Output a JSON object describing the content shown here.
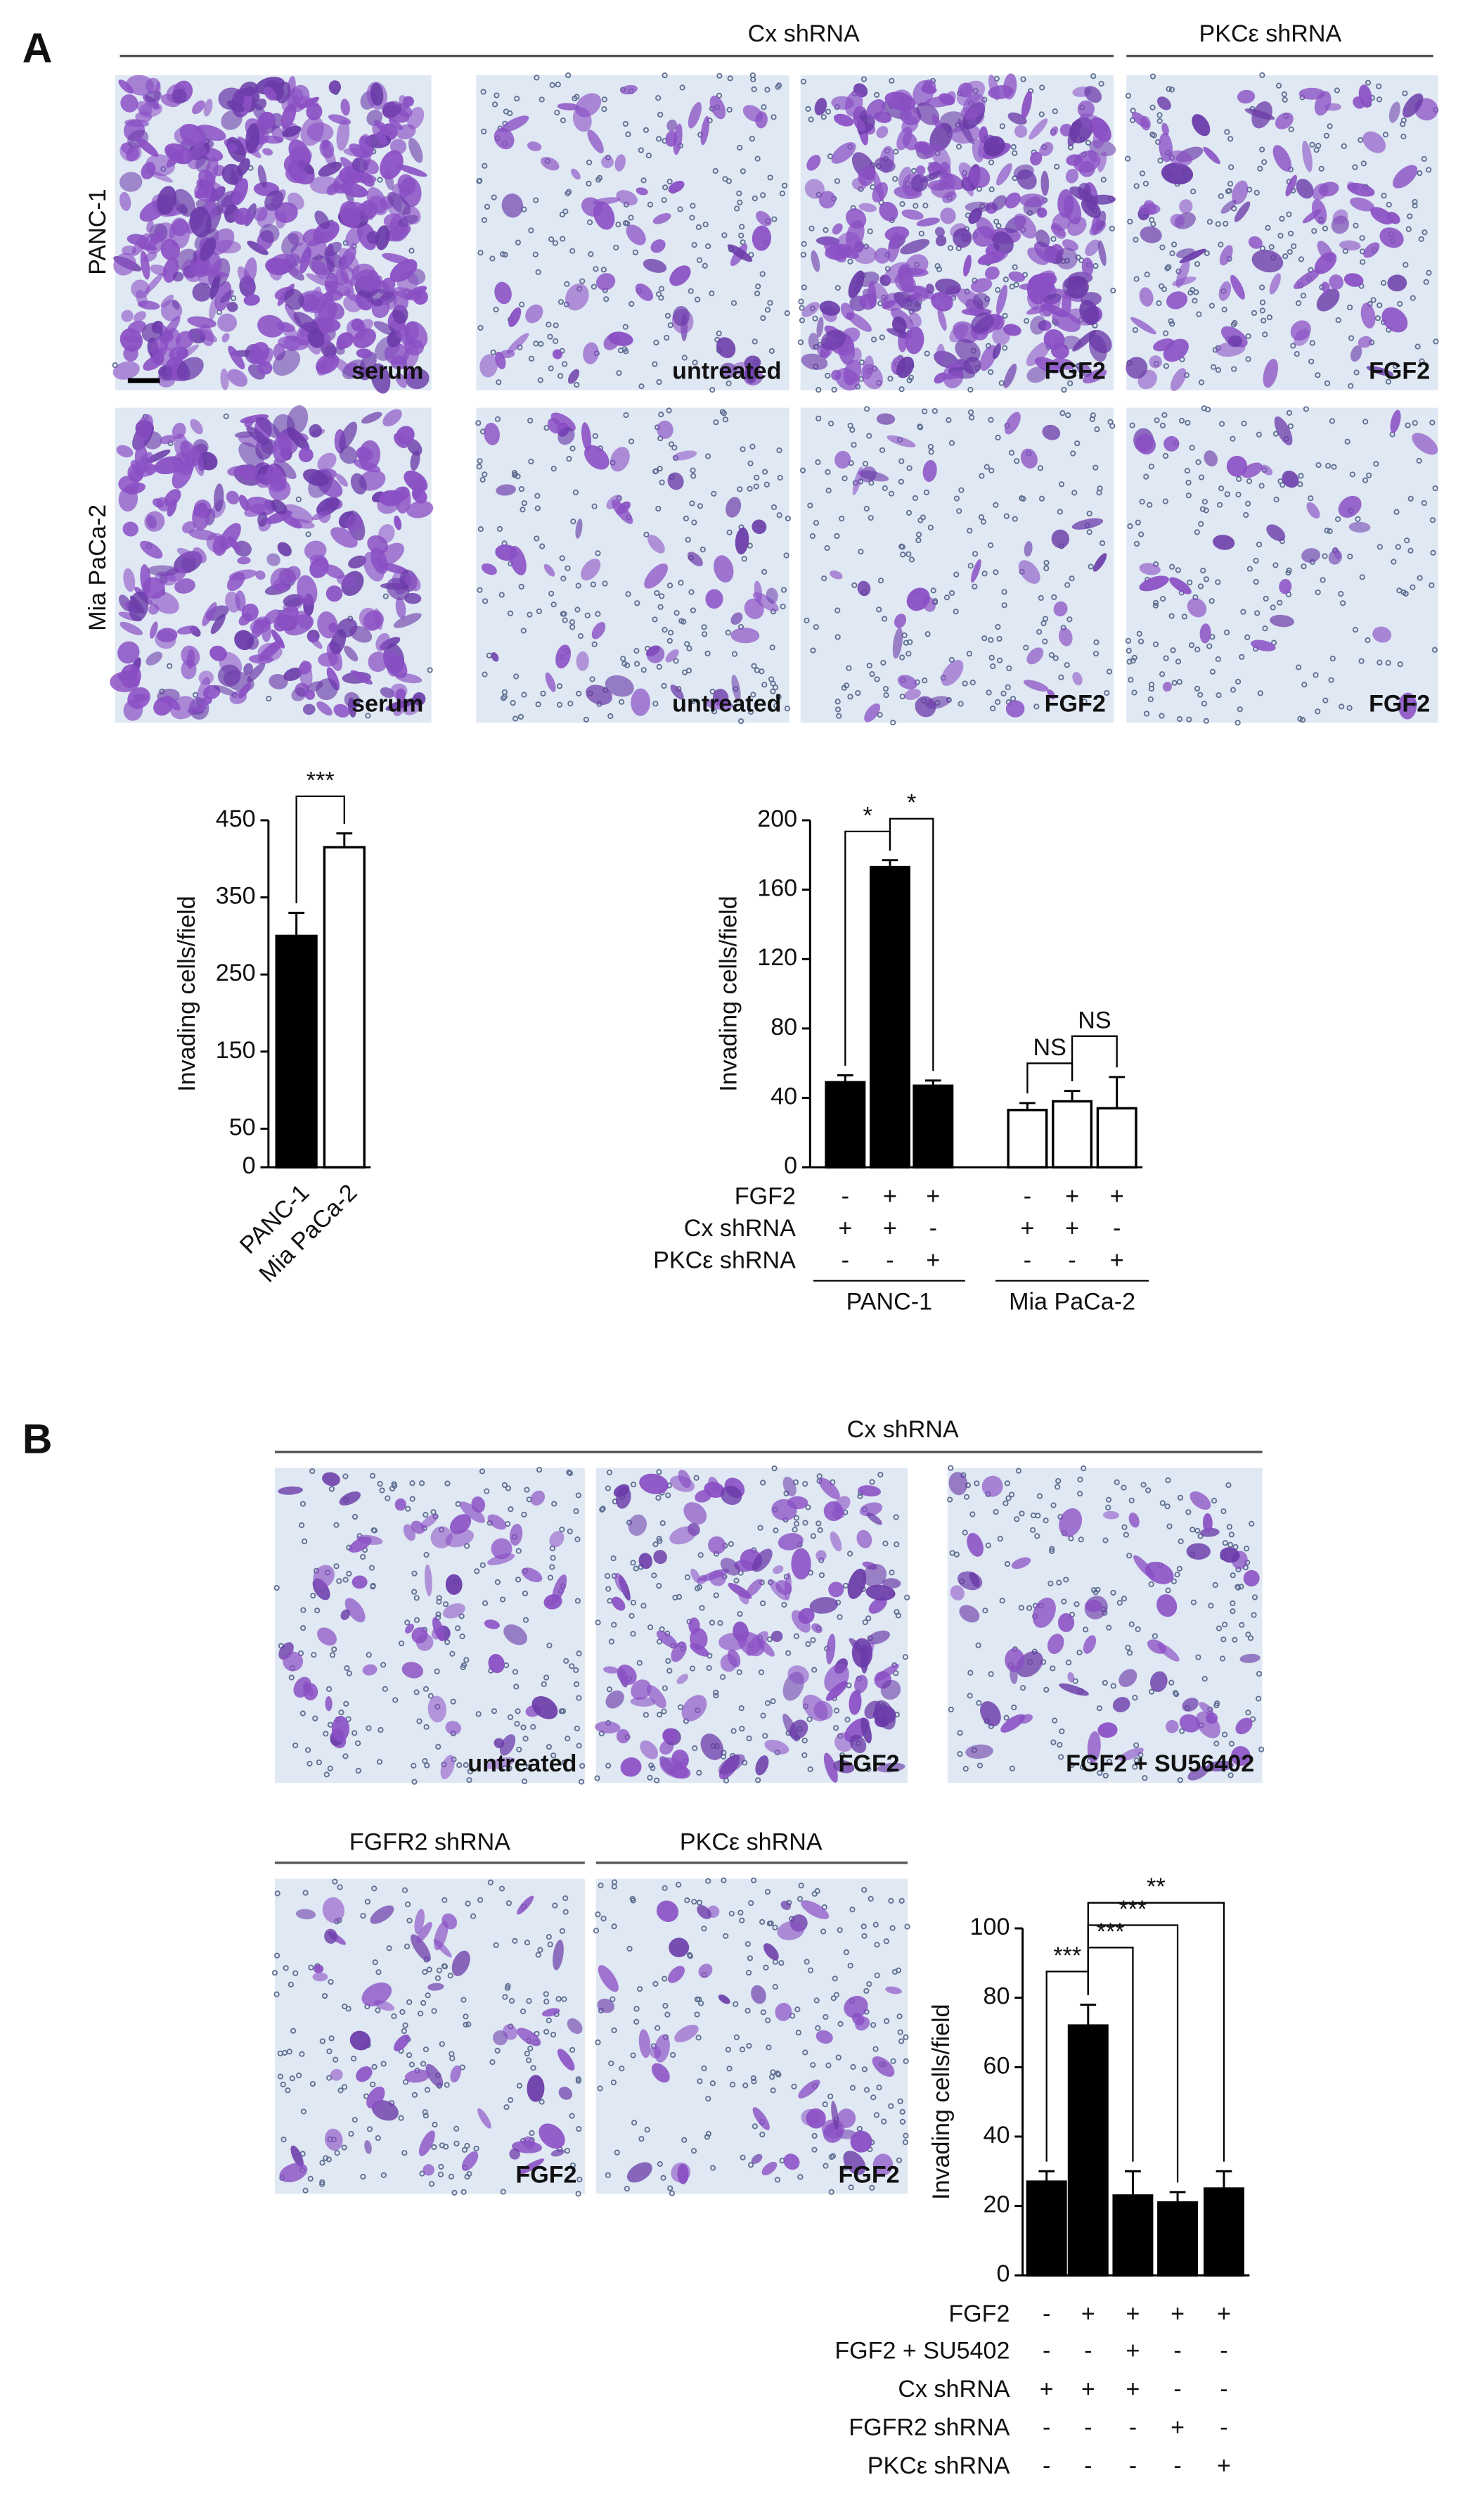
{
  "panel_a": {
    "label": "A",
    "header_cx": "Cx shRNA",
    "header_pkc": "PKCε shRNA",
    "row_labels": [
      "PANC-1",
      "Mia PaCa-2"
    ],
    "image_labels": [
      [
        "serum",
        "untreated",
        "FGF2",
        "FGF2"
      ],
      [
        "serum",
        "untreated",
        "FGF2",
        "FGF2"
      ]
    ]
  },
  "panel_b": {
    "label": "B",
    "header_cx": "Cx shRNA",
    "image_labels_top": [
      "untreated",
      "FGF2",
      "FGF2 + SU56402"
    ],
    "header_fgfr2": "FGFR2 shRNA",
    "header_pkc": "PKCε shRNA",
    "image_labels_bottom": [
      "FGF2",
      "FGF2"
    ]
  },
  "chart_data": [
    {
      "type": "bar",
      "y_label": "Invading cells/field",
      "categories": [
        "PANC-1",
        "Mia PaCa-2"
      ],
      "values": [
        300,
        415
      ],
      "errors": [
        30,
        18
      ],
      "colors": [
        "#000000",
        "#ffffff"
      ],
      "ylim": [
        0,
        450
      ],
      "yticks": [
        0,
        50,
        150,
        250,
        350,
        450
      ],
      "annotations": [
        "***"
      ]
    },
    {
      "type": "grouped-bar",
      "y_label": "Invading cells/field",
      "ylim": [
        0,
        200
      ],
      "yticks": [
        0,
        40,
        80,
        120,
        160,
        200
      ],
      "series": [
        {
          "name": "PANC-1",
          "color": "#000000",
          "values": [
            49,
            173,
            47
          ],
          "errors": [
            4,
            4,
            3
          ]
        },
        {
          "name": "Mia PaCa-2",
          "color": "#ffffff",
          "values": [
            33,
            38,
            34
          ],
          "errors": [
            4,
            6,
            18
          ]
        }
      ],
      "conditions": [
        {
          "label": "FGF2",
          "signs": [
            "-",
            "+",
            "+",
            "-",
            "+",
            "+"
          ]
        },
        {
          "label": "Cx shRNA",
          "signs": [
            "+",
            "+",
            "-",
            "+",
            "+",
            "-"
          ]
        },
        {
          "label": "PKCε shRNA",
          "signs": [
            "-",
            "-",
            "+",
            "-",
            "-",
            "+"
          ]
        }
      ],
      "annotations": [
        "*",
        "*",
        "NS",
        "NS"
      ]
    },
    {
      "type": "bar",
      "y_label": "Invading cells/field",
      "values": [
        27,
        72,
        23,
        21,
        25
      ],
      "errors": [
        3,
        6,
        7,
        3,
        5
      ],
      "color": "#000000",
      "ylim": [
        0,
        100
      ],
      "yticks": [
        0,
        20,
        40,
        60,
        80,
        100
      ],
      "conditions": [
        {
          "label": "FGF2",
          "signs": [
            "-",
            "+",
            "+",
            "+",
            "+"
          ]
        },
        {
          "label": "FGF2 + SU5402",
          "signs": [
            "-",
            "-",
            "+",
            "-",
            "-"
          ]
        },
        {
          "label": "Cx shRNA",
          "signs": [
            "+",
            "+",
            "+",
            "-",
            "-"
          ]
        },
        {
          "label": "FGFR2 shRNA",
          "signs": [
            "-",
            "-",
            "-",
            "+",
            "-"
          ]
        },
        {
          "label": "PKCε shRNA",
          "signs": [
            "-",
            "-",
            "-",
            "-",
            "+"
          ]
        }
      ],
      "annotations": [
        "***",
        "***",
        "***",
        "**"
      ]
    }
  ]
}
